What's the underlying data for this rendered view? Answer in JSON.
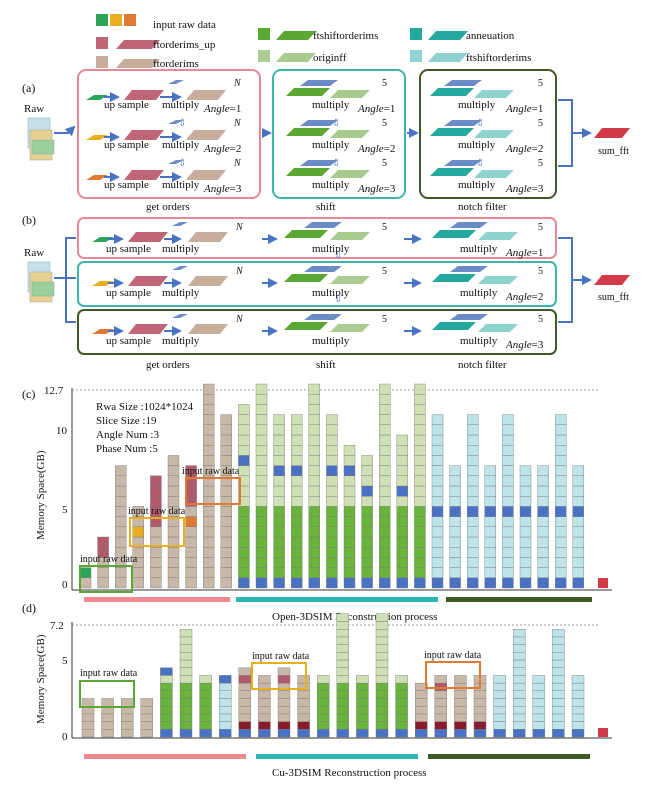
{
  "legend": {
    "raw": "input raw data",
    "up": "ftorderims_up",
    "ord": "ftorderims",
    "shift": "ftshiftorderims",
    "orig": "originff",
    "ann": "anneuation",
    "fshift": "ftshiftorderims"
  },
  "colors": {
    "raw": "#2aa55a",
    "raw2": "#e8b020",
    "raw3": "#e07a30",
    "up": "#c06575",
    "ord": "#c8ad9a",
    "shift": "#5aa832",
    "orig": "#a8cc90",
    "ann": "#25a89e",
    "fshift": "#8fd3d0",
    "mult": "#6b8cc7",
    "pinkBox": "#e58a95",
    "tealBox": "#3ab5b0",
    "greenBox": "#3d5a25",
    "arrow": "#4a72c4",
    "sum": "#d23a48",
    "stackTan": "#c8b8a8",
    "stackLight": "#cfe0b5",
    "stackCyan": "#bde4e8",
    "stackGreen": "#6ab43c",
    "stackBlue": "#4a72c4",
    "stackMaroon": "#8b1a2a",
    "stackRose": "#b05a6c"
  },
  "labels": {
    "a": "(a)",
    "b": "(b)",
    "c": "(c)",
    "d": "(d)",
    "raw": "Raw",
    "upsample": "up sample",
    "multiply": "multiply",
    "N": "N",
    "five": "5",
    "angle": "Angle",
    "a1": "=1",
    "a2": "=2",
    "a3": "=3",
    "getorders": "get orders",
    "shift": "shift",
    "notch": "notch filter",
    "sum": "sum_fft",
    "inputraw": "input raw data"
  },
  "chartC": {
    "ylabel": "Memory Space(GB)",
    "yticks": [
      "12.7",
      "10",
      "5",
      "0"
    ],
    "info": [
      "Rwa Size    :1024*1024",
      "Slice Size   :19",
      "Angle Num  :3",
      "Phase Num  :5"
    ],
    "caption": "Open-3DSIM Reconstruction process"
  },
  "chartD": {
    "ylabel": "Memory Space(GB)",
    "yticks": [
      "7.2",
      "5",
      "0"
    ],
    "caption": "Cu-3DSIM Reconstruction process"
  }
}
